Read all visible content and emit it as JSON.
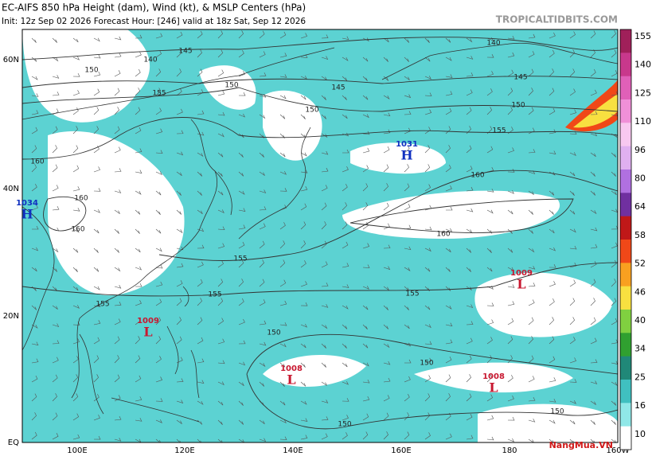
{
  "header": {
    "title": "EC-AIFS 850 hPa Height (dam), Wind (kt), & MSLP Centers (hPa)",
    "subtitle": "Init: 12z Sep 02 2026   Forecast Hour: [246]   valid at 18z Sat, Sep 12 2026",
    "source": "TROPICALTIDBITS.COM"
  },
  "map": {
    "lat_labels": [
      "60N",
      "40N",
      "20N",
      "EQ"
    ],
    "lon_labels": [
      "100E",
      "120E",
      "140E",
      "160E",
      "180",
      "160W"
    ],
    "centers": [
      {
        "pressure": "1034",
        "symbol": "H"
      },
      {
        "pressure": "1031",
        "symbol": "H"
      },
      {
        "pressure": "1009",
        "symbol": "L"
      },
      {
        "pressure": "1008",
        "symbol": "L"
      },
      {
        "pressure": "1008",
        "symbol": "L"
      },
      {
        "pressure": "1009",
        "symbol": "L"
      }
    ],
    "contour_labels": [
      "140",
      "145",
      "150",
      "155",
      "160",
      "160",
      "160",
      "150",
      "145",
      "150",
      "140",
      "145",
      "150",
      "155",
      "160",
      "160",
      "155",
      "155",
      "155",
      "150",
      "150",
      "150",
      "150",
      "155"
    ]
  },
  "colorbar": {
    "labels": [
      "155",
      "140",
      "125",
      "110",
      "96",
      "80",
      "64",
      "58",
      "52",
      "46",
      "40",
      "34",
      "25",
      "16",
      "10"
    ],
    "colors": [
      "#a0205a",
      "#c8388c",
      "#e060b8",
      "#f090d8",
      "#f8c8f0",
      "#e0b0f0",
      "#b070e0",
      "#7030a0",
      "#c01818",
      "#f04818",
      "#f8a020",
      "#f8e040",
      "#80d040",
      "#30a030",
      "#208878",
      "#40c0c0",
      "#90e8e8",
      "#ffffff"
    ]
  },
  "watermark": "NangMua.VN"
}
